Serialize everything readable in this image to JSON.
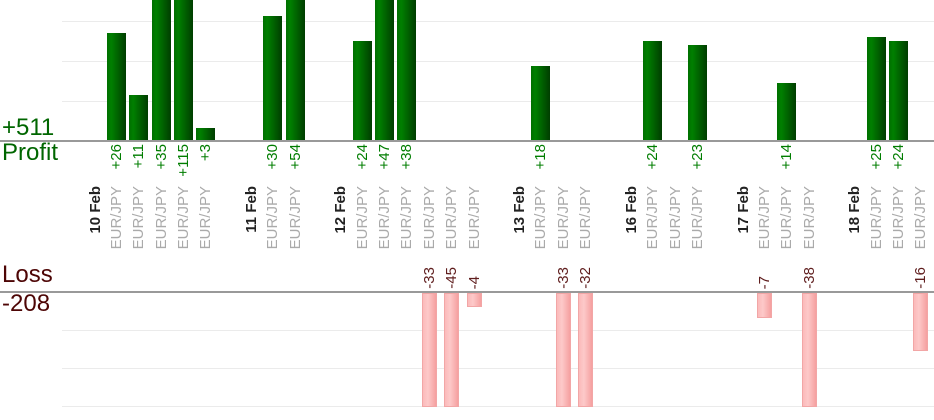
{
  "chart_data": {
    "type": "bar",
    "profit_axis_label": "Profit",
    "profit_total_label": "+511",
    "loss_axis_label": "Loss",
    "loss_total_label": "-208",
    "profit_visible_ylim": [
      0,
      34
    ],
    "loss_visible_ylim": [
      -32,
      0
    ],
    "grid": true,
    "legend": "none",
    "groups": [
      {
        "date": "10 Feb",
        "trades": [
          {
            "symbol": "EUR/JPY",
            "value": 26,
            "label": "+26"
          },
          {
            "symbol": "EUR/JPY",
            "value": 11,
            "label": "+11"
          },
          {
            "symbol": "EUR/JPY",
            "value": 35,
            "label": "+35"
          },
          {
            "symbol": "EUR/JPY",
            "value": 115,
            "label": "+115"
          },
          {
            "symbol": "EUR/JPY",
            "value": 3,
            "label": "+3"
          }
        ]
      },
      {
        "date": "11 Feb",
        "trades": [
          {
            "symbol": "EUR/JPY",
            "value": 30,
            "label": "+30"
          },
          {
            "symbol": "EUR/JPY",
            "value": 54,
            "label": "+54"
          }
        ]
      },
      {
        "date": "12 Feb",
        "trades": [
          {
            "symbol": "EUR/JPY",
            "value": 24,
            "label": "+24"
          },
          {
            "symbol": "EUR/JPY",
            "value": 47,
            "label": "+47"
          },
          {
            "symbol": "EUR/JPY",
            "value": 38,
            "label": "+38"
          },
          {
            "symbol": "EUR/JPY",
            "value": -33,
            "label": "-33"
          },
          {
            "symbol": "EUR/JPY",
            "value": -45,
            "label": "-45"
          },
          {
            "symbol": "EUR/JPY",
            "value": -4,
            "label": "-4"
          }
        ]
      },
      {
        "date": "13 Feb",
        "trades": [
          {
            "symbol": "EUR/JPY",
            "value": 18,
            "label": "+18"
          },
          {
            "symbol": "EUR/JPY",
            "value": -33,
            "label": "-33"
          },
          {
            "symbol": "EUR/JPY",
            "value": -32,
            "label": "-32"
          }
        ]
      },
      {
        "date": "16 Feb",
        "trades": [
          {
            "symbol": "EUR/JPY",
            "value": 24,
            "label": "+24"
          },
          {
            "symbol": "EUR/JPY",
            "value": 0,
            "label": ""
          },
          {
            "symbol": "EUR/JPY",
            "value": 23,
            "label": "+23"
          }
        ]
      },
      {
        "date": "17 Feb",
        "trades": [
          {
            "symbol": "EUR/JPY",
            "value": -7,
            "label": "-7"
          },
          {
            "symbol": "EUR/JPY",
            "value": 14,
            "label": "+14"
          },
          {
            "symbol": "EUR/JPY",
            "value": -38,
            "label": "-38"
          }
        ]
      },
      {
        "date": "18 Feb",
        "trades": [
          {
            "symbol": "EUR/JPY",
            "value": 25,
            "label": "+25"
          },
          {
            "symbol": "EUR/JPY",
            "value": 24,
            "label": "+24"
          },
          {
            "symbol": "EUR/JPY",
            "value": -16,
            "label": "-16"
          }
        ]
      }
    ],
    "colors": {
      "profit_text": "#006600",
      "loss_text": "#4d0505",
      "profit_value_text": "#007d00",
      "loss_value_text": "#5f1d1d",
      "date_text": "#222222",
      "symbol_text": "#aaaaaa",
      "axis_line": "#999999",
      "gridline": "#ebebeb",
      "profit_bar": "#006600",
      "loss_bar": "#f9adad"
    }
  }
}
